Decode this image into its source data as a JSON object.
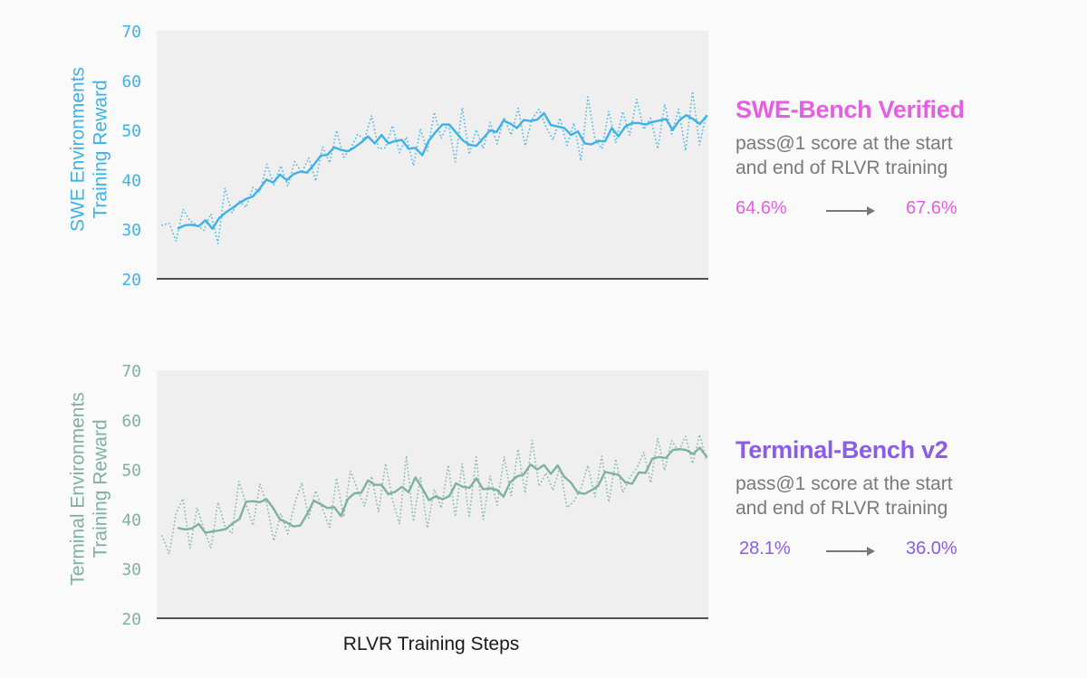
{
  "chart_data": [
    {
      "type": "line",
      "ylabel": "SWE Environments\nTraining Reward",
      "xlabel": "",
      "ylim": [
        20,
        70
      ],
      "yticks": [
        20,
        30,
        40,
        50,
        60,
        70
      ],
      "grid": false,
      "color": "#3db1e8",
      "series": [
        {
          "style": "smoothed",
          "values": [
            30.2,
            30.8,
            30.9,
            30.6,
            31.8,
            30.1,
            32.2,
            33.4,
            34.3,
            35.3,
            36.1,
            36.6,
            38.2,
            40.0,
            39.4,
            41.0,
            39.9,
            41.1,
            41.6,
            41.4,
            43.0,
            44.8,
            45.0,
            46.5,
            46.0,
            45.7,
            46.5,
            47.5,
            48.7,
            47.3,
            49.0,
            47.3,
            47.8,
            48.0,
            46.2,
            46.4,
            44.9,
            47.9,
            49.6,
            51.1,
            51.1,
            49.5,
            47.9,
            47.0,
            46.8,
            48.3,
            49.9,
            49.6,
            51.9,
            51.3,
            50.4,
            52.0,
            51.8,
            52.1,
            53.4,
            51.0,
            50.7,
            50.4,
            49.0,
            49.7,
            47.3,
            47.1,
            47.8,
            47.7,
            50.4,
            48.7,
            50.7,
            51.4,
            51.4,
            51.1,
            51.6,
            51.9,
            52.2,
            50.0,
            52.0,
            53.0,
            52.2,
            51.2,
            52.8
          ]
        },
        {
          "style": "raw",
          "values": [
            30.8,
            31.2,
            27.6,
            34.0,
            31.7,
            30.8,
            29.8,
            33.1,
            27.1,
            38.3,
            33.3,
            35.7,
            34.4,
            38.4,
            37.5,
            43.1,
            38.9,
            42.8,
            38.7,
            43.6,
            41.4,
            44.4,
            39.7,
            46.6,
            43.4,
            49.9,
            44.5,
            46.2,
            49.1,
            48.1,
            52.9,
            46.2,
            46.4,
            50.9,
            45.4,
            48.6,
            42.8,
            50.2,
            45.8,
            53.6,
            48.3,
            51.4,
            43.6,
            54.5,
            45.1,
            50.1,
            46.3,
            51.5,
            47.2,
            52.6,
            49.0,
            54.4,
            46.8,
            52.2,
            54.2,
            50.6,
            48.0,
            52.4,
            46.9,
            51.4,
            43.8,
            56.7,
            48.3,
            46.2,
            53.8,
            47.4,
            53.7,
            48.9,
            56.2,
            50.1,
            52.4,
            46.2,
            55.2,
            49.2,
            54.2,
            45.8,
            57.8,
            47.0,
            53.5
          ]
        }
      ]
    },
    {
      "type": "line",
      "ylabel": "Terminal Environments\nTraining Reward",
      "xlabel": "RLVR Training Steps",
      "ylim": [
        20,
        70
      ],
      "yticks": [
        20,
        30,
        40,
        50,
        60,
        70
      ],
      "grid": false,
      "color": "#7fb19e",
      "series": [
        {
          "style": "smoothed",
          "values": [
            38.2,
            37.9,
            38.1,
            39.0,
            37.2,
            37.5,
            37.7,
            38.0,
            39.1,
            40.0,
            43.5,
            43.6,
            43.4,
            44.0,
            42.2,
            39.9,
            39.3,
            38.5,
            38.7,
            41.0,
            43.7,
            43.0,
            42.2,
            42.4,
            40.6,
            44.0,
            45.2,
            45.3,
            47.8,
            46.9,
            46.9,
            45.0,
            45.5,
            46.5,
            45.4,
            48.4,
            46.2,
            43.8,
            44.6,
            44.0,
            44.6,
            47.2,
            46.5,
            46.3,
            48.2,
            46.0,
            46.2,
            45.9,
            44.5,
            47.4,
            48.6,
            49.0,
            51.0,
            50.0,
            50.9,
            49.1,
            50.8,
            48.5,
            47.3,
            45.3,
            45.1,
            45.8,
            46.7,
            49.5,
            49.2,
            48.9,
            47.4,
            47.1,
            49.4,
            49.3,
            52.2,
            52.5,
            52.3,
            53.9,
            54.1,
            53.9,
            53.1,
            54.4,
            52.6
          ]
        },
        {
          "style": "raw",
          "values": [
            36.6,
            33.0,
            41.2,
            44.1,
            34.1,
            42.3,
            37.9,
            34.1,
            43.4,
            38.6,
            37.1,
            47.6,
            43.1,
            38.7,
            47.1,
            42.9,
            35.6,
            41.1,
            37.0,
            43.2,
            47.3,
            40.2,
            45.7,
            42.0,
            38.3,
            48.3,
            40.4,
            49.7,
            45.9,
            42.6,
            48.6,
            41.4,
            51.2,
            43.9,
            39.0,
            52.8,
            39.5,
            48.5,
            38.2,
            46.0,
            42.2,
            50.9,
            40.5,
            51.2,
            40.3,
            52.5,
            39.9,
            48.7,
            42.8,
            52.6,
            44.7,
            54.1,
            45.2,
            55.9,
            46.6,
            49.3,
            45.8,
            50.5,
            42.3,
            43.6,
            46.1,
            50.8,
            44.5,
            52.7,
            43.4,
            52.1,
            45.3,
            48.4,
            50.2,
            53.5,
            47.3,
            56.3,
            49.8,
            55.8,
            53.6,
            56.7,
            51.2,
            57.0,
            51.8
          ]
        }
      ]
    }
  ],
  "benchmarks": [
    {
      "title": "SWE-Bench Verified",
      "line1": "pass@1 score at the start",
      "line2": "and end of RLVR training",
      "start": "64.6%",
      "end": "67.6%",
      "color": "#e55fe2"
    },
    {
      "title": "Terminal-Bench v2",
      "line1": "pass@1 score at the start",
      "line2": "and end of RLVR training",
      "start": "28.1%",
      "end": "36.0%",
      "color": "#8a5ce8"
    }
  ]
}
